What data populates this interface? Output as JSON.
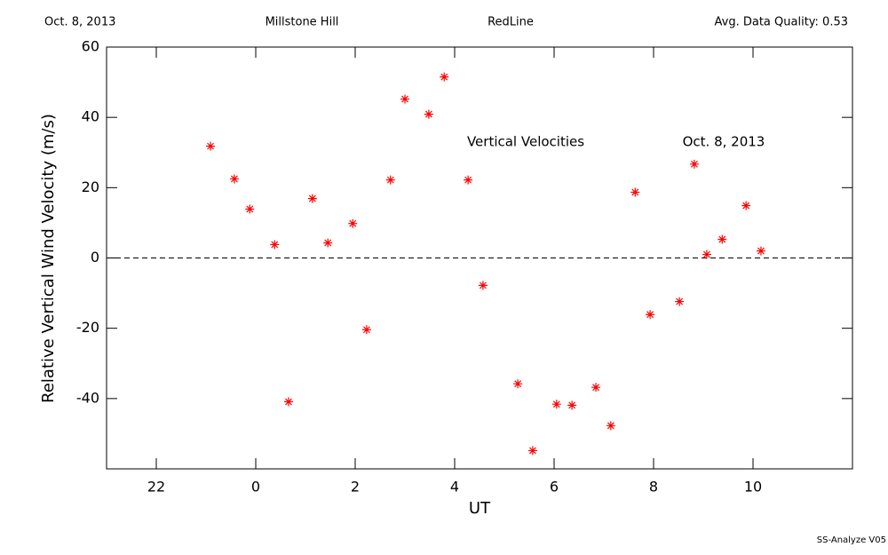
{
  "header": {
    "date": "Oct. 8, 2013",
    "site": "Millstone Hill",
    "line": "RedLine",
    "quality": "Avg. Data Quality: 0.53"
  },
  "footer": "SS-Analyze V05",
  "chart_data": {
    "type": "scatter",
    "x_label": "UT",
    "y_label": "Relative Vertical Wind Velocity (m/s)",
    "annotations": [
      "Vertical Velocities",
      "Oct. 8, 2013"
    ],
    "color": "#ff0000",
    "marker": "asterisk",
    "zero_line": true,
    "xlim": [
      21,
      36
    ],
    "xticks": [
      22,
      {
        "value": 24,
        "label": "0"
      },
      {
        "value": 26,
        "label": "2"
      },
      {
        "value": 28,
        "label": "4"
      },
      {
        "value": 30,
        "label": "6"
      },
      {
        "value": 32,
        "label": "8"
      },
      {
        "value": 34,
        "label": "10"
      }
    ],
    "ylim": [
      -60,
      60
    ],
    "yticks": [
      -40,
      -20,
      0,
      20,
      40,
      60
    ],
    "x": [
      23.09,
      23.57,
      23.88,
      24.38,
      24.66,
      25.14,
      25.45,
      25.95,
      26.23,
      26.71,
      27.0,
      27.48,
      27.79,
      28.27,
      28.57,
      29.27,
      29.57,
      30.05,
      30.36,
      30.84,
      31.14,
      31.63,
      31.93,
      32.52,
      32.82,
      33.07,
      33.38,
      33.86,
      34.16
    ],
    "values": [
      31.8,
      22.5,
      13.9,
      3.8,
      -40.9,
      16.9,
      4.3,
      9.8,
      -20.4,
      22.2,
      45.2,
      40.9,
      51.5,
      22.2,
      -7.8,
      -35.8,
      -54.8,
      -41.6,
      -41.9,
      -36.8,
      -47.7,
      18.7,
      -16.1,
      -12.4,
      26.7,
      1.0,
      5.3,
      14.9,
      2.0
    ]
  }
}
